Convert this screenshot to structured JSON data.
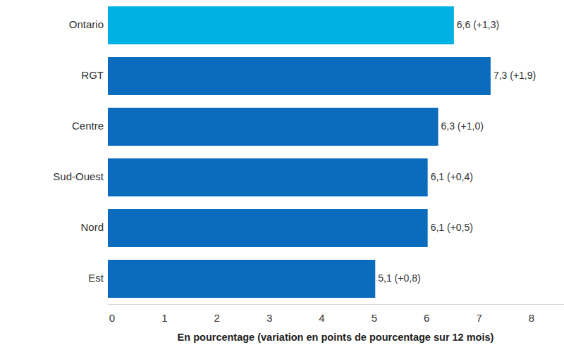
{
  "chart_data": {
    "type": "bar",
    "orientation": "horizontal",
    "categories": [
      "Ontario",
      "RGT",
      "Centre",
      "Sud-Ouest",
      "Nord",
      "Est"
    ],
    "values": [
      6.6,
      7.3,
      6.3,
      6.1,
      6.1,
      5.1
    ],
    "value_labels": [
      "6,6 (+1,3)",
      "7,3 (+1,9)",
      "6,3 (+1,0)",
      "6,1 (+0,4)",
      "6,1 (+0,5)",
      "5,1 (+0,8)"
    ],
    "colors": [
      "#00b2e3",
      "#0b6bbd",
      "#0b6bbd",
      "#0b6bbd",
      "#0b6bbd",
      "#0b6bbd"
    ],
    "x_label": "En pourcentage (variation en points de pourcentage sur 12 mois)",
    "xlim": [
      0,
      8.7
    ],
    "xticks": [
      0,
      1,
      2,
      3,
      4,
      5,
      6,
      7,
      8
    ],
    "grid": false,
    "data_labels": true
  }
}
